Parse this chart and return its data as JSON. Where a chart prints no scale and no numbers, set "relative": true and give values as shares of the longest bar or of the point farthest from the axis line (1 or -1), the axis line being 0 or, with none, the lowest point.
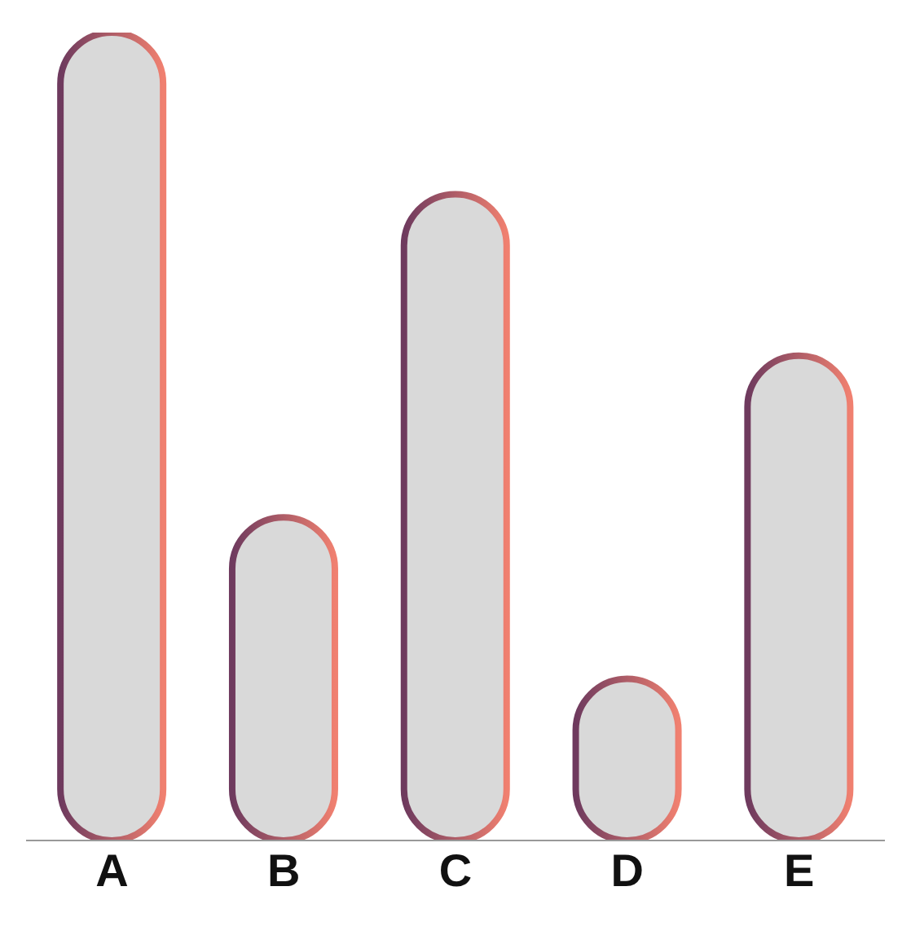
{
  "chart_data": {
    "type": "bar",
    "relative": true,
    "categories": [
      "A",
      "B",
      "C",
      "D",
      "E"
    ],
    "values": [
      1,
      0.4,
      0.8,
      0.2,
      0.6
    ],
    "color": "#d9d9d9"
  }
}
